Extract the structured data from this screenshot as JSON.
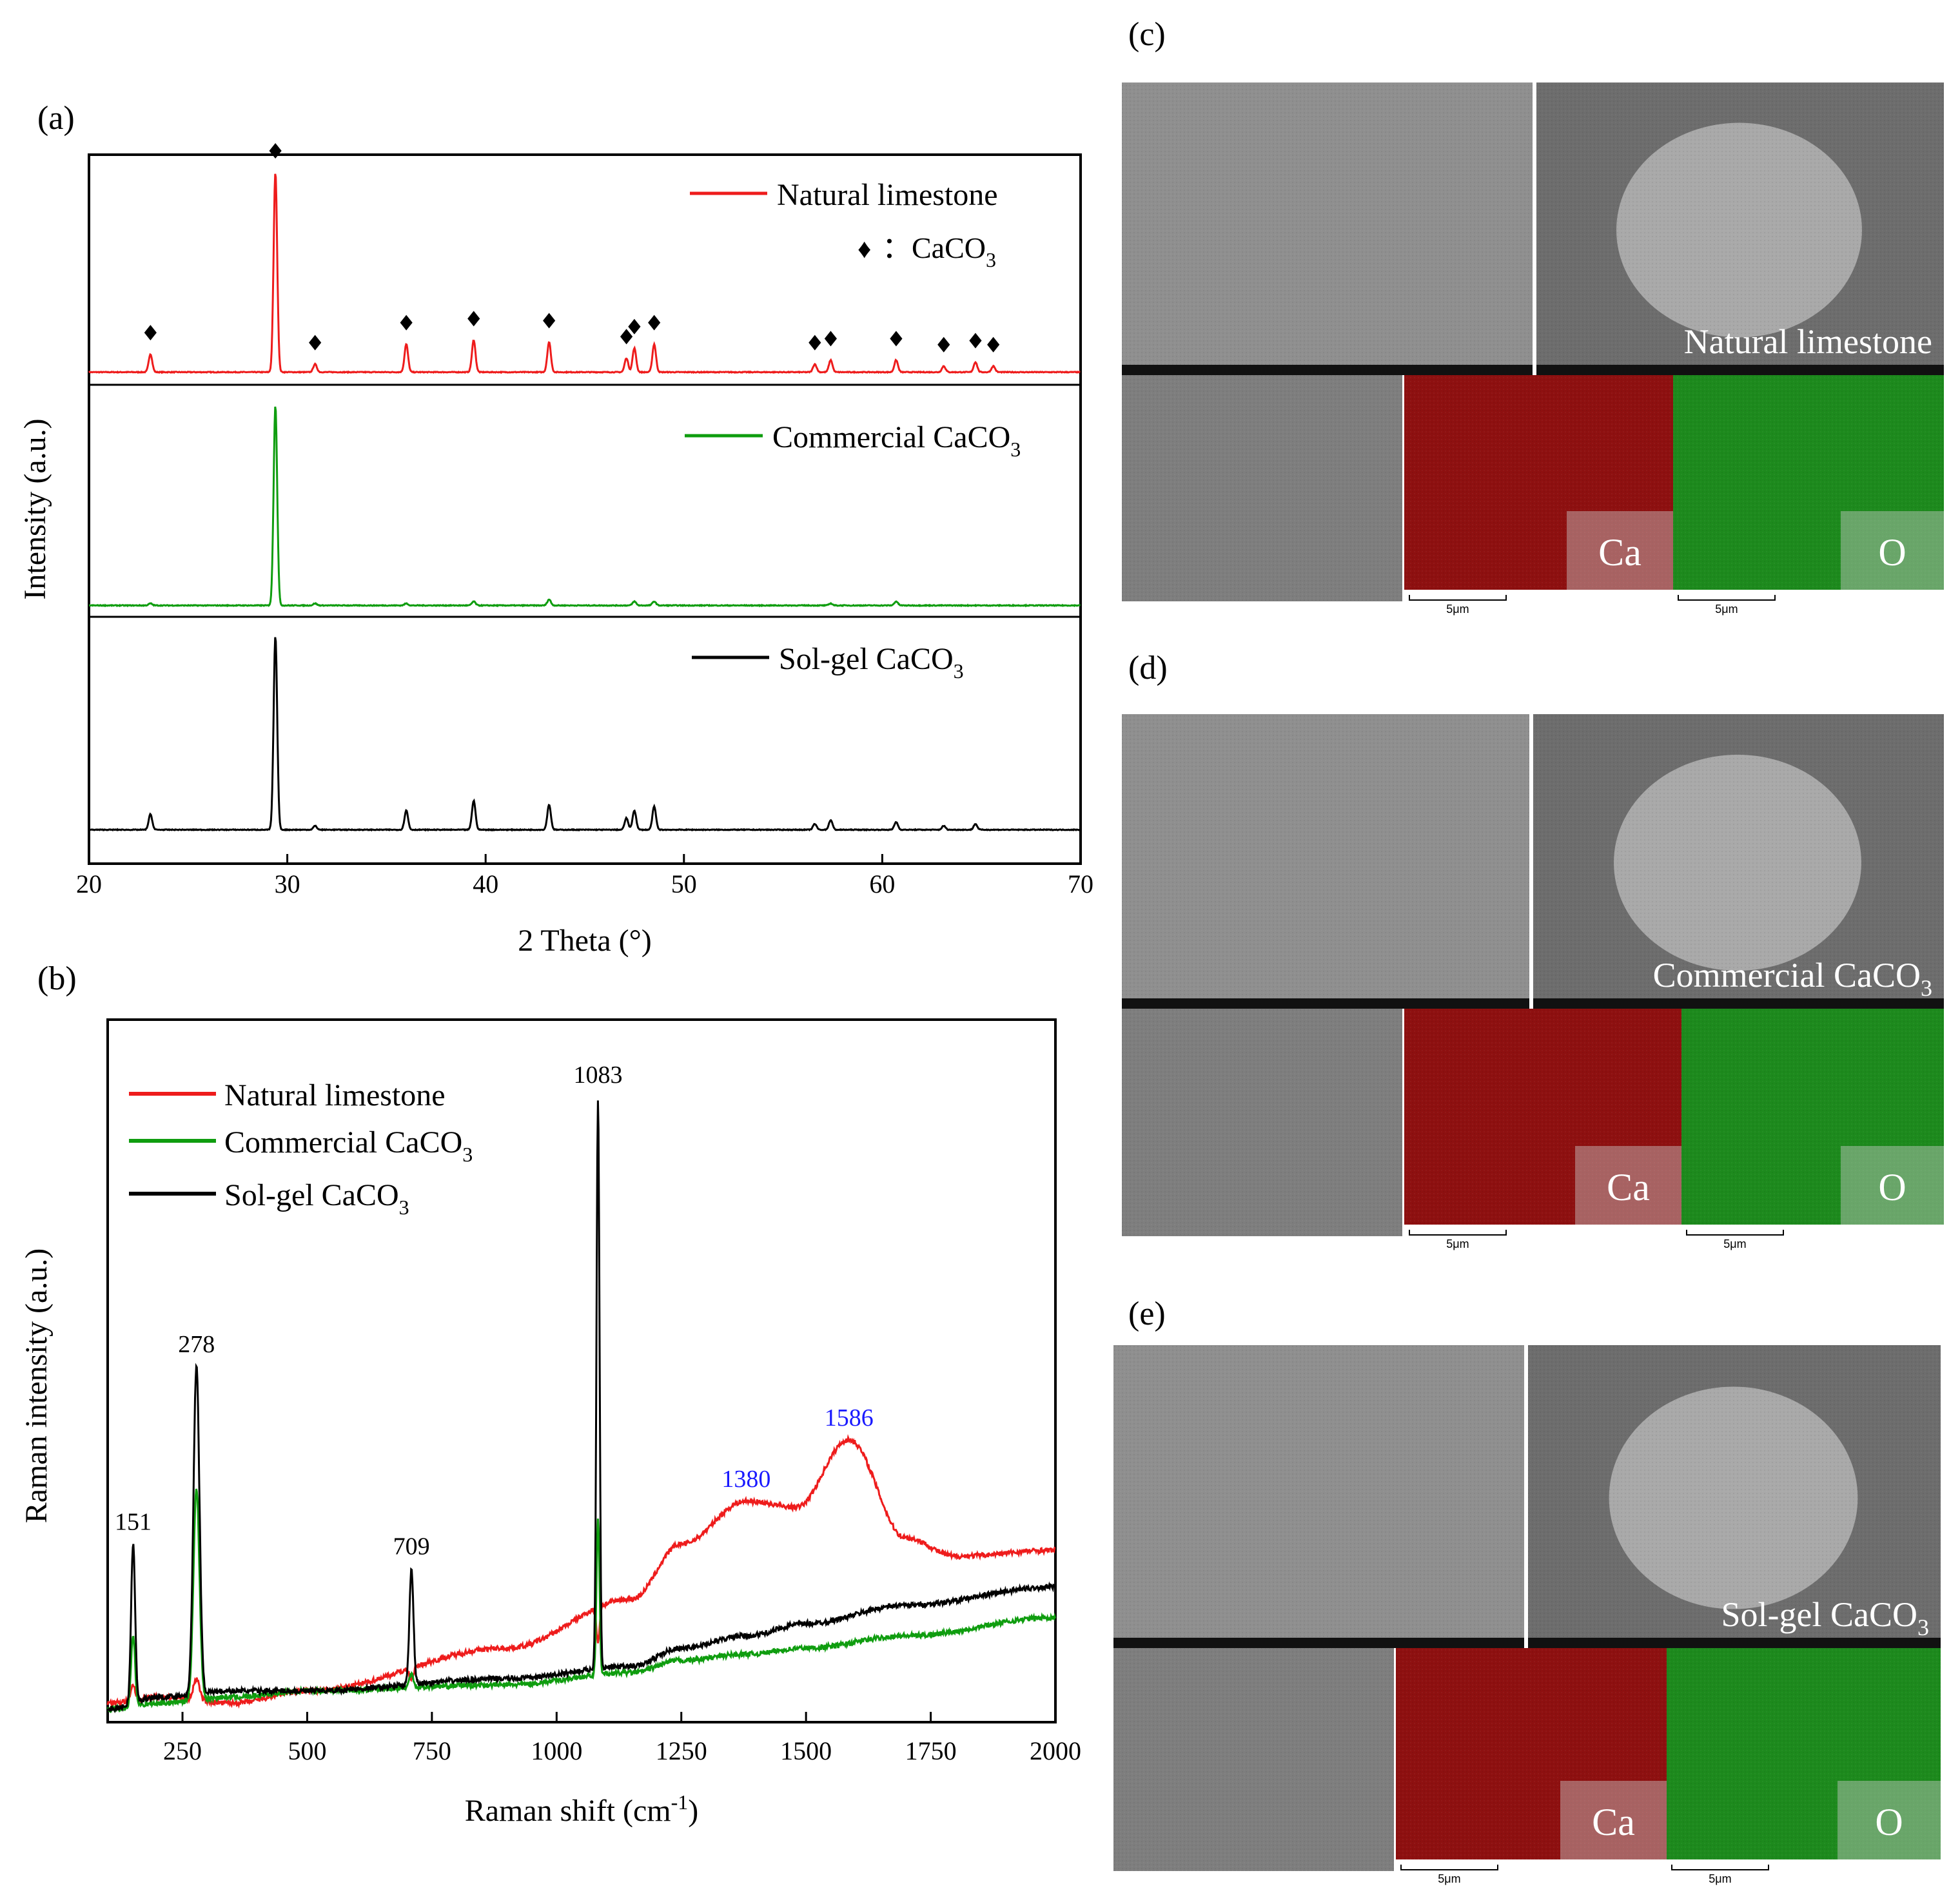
{
  "panel_a": {
    "letter": "(a)",
    "ylabel": "Intensity (a.u.)",
    "xlabel": "2 Theta (°)",
    "xticks": [
      "20",
      "30",
      "40",
      "50",
      "60",
      "70"
    ],
    "marker_legend": {
      "symbol": "♦",
      "text": "：CaCO",
      "sub": "3"
    },
    "colors": [
      "#ee1c1c",
      "#0f9d0f",
      "#000000"
    ],
    "traces": [
      {
        "name": "Natural limestone",
        "name_sub": "",
        "legend_main": "Natural limestone"
      },
      {
        "name": "Commercial CaCO3",
        "legend_main": "Commercial CaCO",
        "name_sub": "3"
      },
      {
        "name": "Sol-gel CaCO3",
        "legend_main": "Sol-gel CaCO",
        "name_sub": "3"
      }
    ]
  },
  "panel_b": {
    "letter": "(b)",
    "ylabel": "Raman intensity (a.u.)",
    "xlabel_main": "Raman shift (cm",
    "xlabel_sup": "-1",
    "xlabel_end": ")",
    "xticks": [
      "250",
      "500",
      "750",
      "1000",
      "1250",
      "1500",
      "1750",
      "2000"
    ],
    "legend": [
      {
        "main": "Natural limestone",
        "sub": ""
      },
      {
        "main": "Commercial CaCO",
        "sub": "3"
      },
      {
        "main": "Sol-gel CaCO",
        "sub": "3"
      }
    ],
    "peak_labels": [
      {
        "text": "151",
        "x": 151,
        "color": "#000000"
      },
      {
        "text": "278",
        "x": 278,
        "color": "#000000"
      },
      {
        "text": "709",
        "x": 709,
        "color": "#000000"
      },
      {
        "text": "1083",
        "x": 1083,
        "color": "#000000"
      },
      {
        "text": "1380",
        "x": 1380,
        "color": "#1a1aff"
      },
      {
        "text": "1586",
        "x": 1586,
        "color": "#1a1aff"
      }
    ]
  },
  "sem": {
    "letters": [
      "(c)",
      "(d)",
      "(e)"
    ],
    "titles": [
      {
        "main": "Natural limestone",
        "sub": ""
      },
      {
        "main": "Commercial CaCO",
        "sub": "3"
      },
      {
        "main": "Sol-gel CaCO",
        "sub": "3"
      }
    ],
    "element_labels": [
      "Ca",
      "O"
    ],
    "scale_bar": "5μm",
    "colors": {
      "ca": "#8e1010",
      "o": "#1d8a1d",
      "sem": "#8c8c8c"
    }
  },
  "chart_data": [
    {
      "type": "line",
      "title": "",
      "xlabel": "2 Theta (°)",
      "ylabel": "Intensity (a.u.)",
      "xlim": [
        20,
        70
      ],
      "grid": false,
      "legend": "top-right of each stacked trace",
      "series": [
        {
          "name": "Natural limestone",
          "peaks_2theta": [
            23.1,
            29.4,
            31.4,
            36.0,
            39.4,
            43.2,
            47.1,
            47.5,
            48.5,
            56.6,
            57.4,
            60.7,
            63.1,
            64.7,
            65.6
          ],
          "relative_intensity": [
            0.09,
            1.0,
            0.04,
            0.14,
            0.16,
            0.15,
            0.07,
            0.12,
            0.14,
            0.04,
            0.06,
            0.06,
            0.03,
            0.05,
            0.03
          ],
          "peak_markers": "♦ CaCO3"
        },
        {
          "name": "Commercial CaCO3",
          "peaks_2theta": [
            23.1,
            29.4,
            31.4,
            36.0,
            39.4,
            43.2,
            47.5,
            48.5,
            57.4,
            60.7
          ],
          "relative_intensity": [
            0.01,
            1.0,
            0.01,
            0.01,
            0.02,
            0.03,
            0.02,
            0.02,
            0.01,
            0.02
          ]
        },
        {
          "name": "Sol-gel CaCO3",
          "peaks_2theta": [
            23.1,
            29.4,
            31.4,
            36.0,
            39.4,
            43.2,
            47.1,
            47.5,
            48.5,
            56.6,
            57.4,
            60.7,
            63.1,
            64.7
          ],
          "relative_intensity": [
            0.08,
            1.0,
            0.02,
            0.1,
            0.15,
            0.13,
            0.06,
            0.1,
            0.12,
            0.03,
            0.05,
            0.04,
            0.02,
            0.03
          ]
        }
      ]
    },
    {
      "type": "line",
      "title": "",
      "xlabel": "Raman shift (cm-1)",
      "ylabel": "Raman intensity (a.u.)",
      "xlim": [
        100,
        2000
      ],
      "grid": false,
      "legend": "top-left",
      "series": [
        {
          "name": "Natural limestone",
          "x": [
            100,
            151,
            200,
            278,
            350,
            500,
            709,
            900,
            1083,
            1150,
            1250,
            1380,
            1480,
            1586,
            1700,
            1800,
            2000
          ],
          "y": [
            0.01,
            0.04,
            0.02,
            0.05,
            0.01,
            0.03,
            0.05,
            0.1,
            0.11,
            0.18,
            0.27,
            0.34,
            0.33,
            0.44,
            0.28,
            0.25,
            0.26
          ]
        },
        {
          "name": "Commercial CaCO3",
          "x": [
            100,
            151,
            200,
            278,
            350,
            500,
            709,
            900,
            1083,
            1150,
            1250,
            1380,
            1500,
            1700,
            2000
          ],
          "y": [
            0.0,
            0.12,
            0.01,
            0.36,
            0.02,
            0.03,
            0.06,
            0.04,
            0.31,
            0.06,
            0.08,
            0.09,
            0.1,
            0.12,
            0.15
          ]
        },
        {
          "name": "Sol-gel CaCO3",
          "x": [
            100,
            151,
            200,
            278,
            350,
            500,
            709,
            900,
            1083,
            1150,
            1250,
            1380,
            1500,
            1700,
            2000
          ],
          "y": [
            0.0,
            0.27,
            0.02,
            0.56,
            0.03,
            0.03,
            0.23,
            0.05,
            1.0,
            0.07,
            0.1,
            0.12,
            0.14,
            0.17,
            0.2
          ]
        }
      ]
    }
  ]
}
